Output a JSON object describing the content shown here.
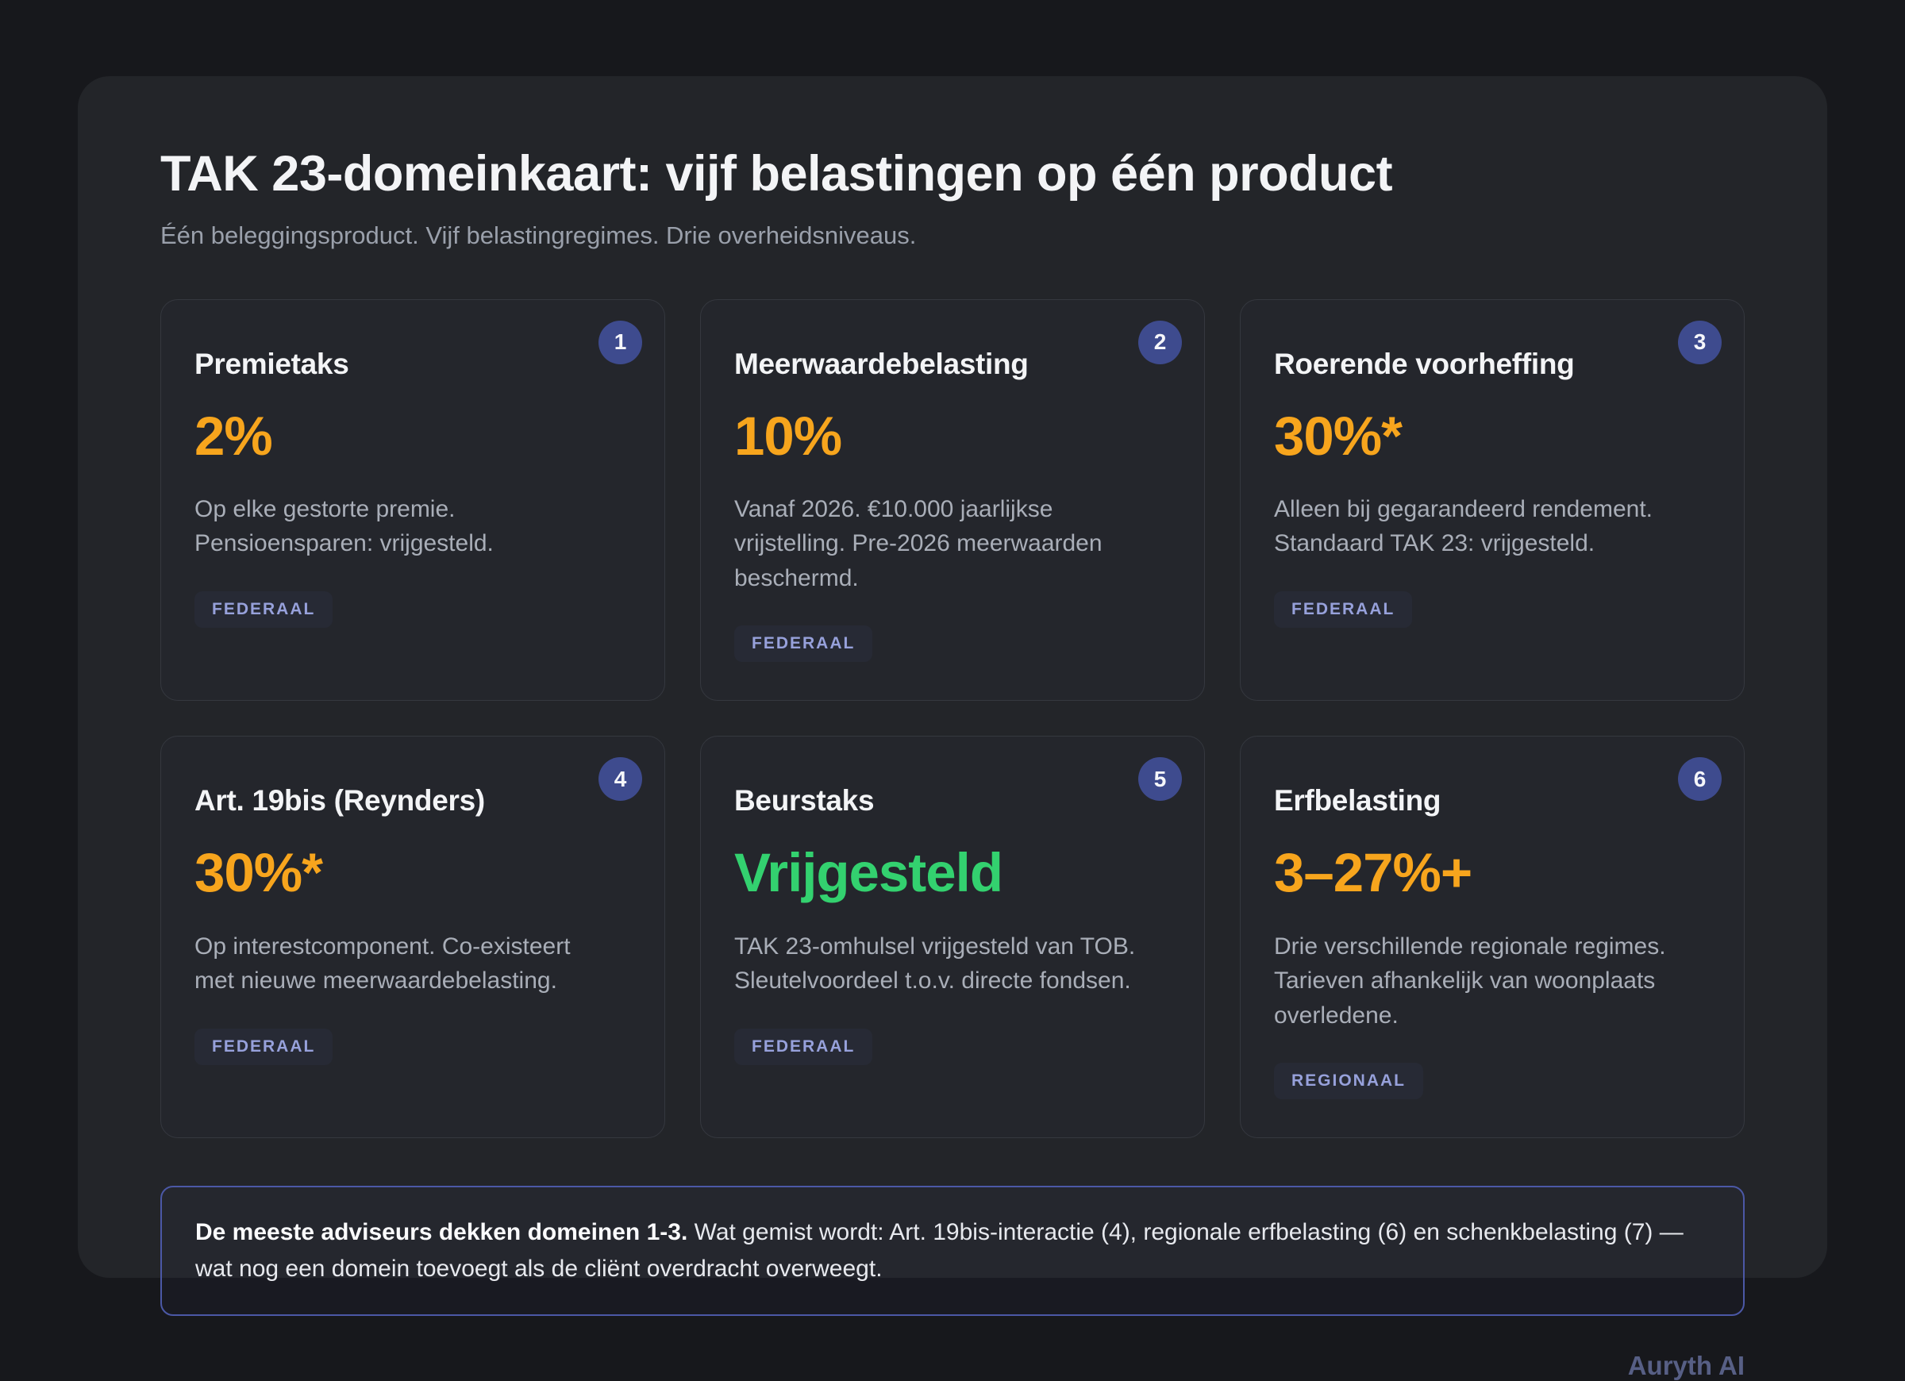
{
  "page": {
    "title": "TAK 23-domeinkaart: vijf belastingen op één product",
    "subtitle": "Één beleggingsproduct. Vijf belastingregimes. Drie overheidsniveaus.",
    "brand": "Auryth AI"
  },
  "colors": {
    "accent_orange": "#f7a51d",
    "accent_green": "#33d16f",
    "number_circle": "#3e4b8e",
    "note_border": "#4b58a6"
  },
  "cards": [
    {
      "number": "1",
      "title": "Premietaks",
      "value": "2%",
      "value_color": "accent_orange",
      "description": "Op elke gestorte premie. Pensioensparen: vrijgesteld.",
      "level": "FEDERAAL"
    },
    {
      "number": "2",
      "title": "Meerwaardebelasting",
      "value": "10%",
      "value_color": "accent_orange",
      "description": "Vanaf 2026. €10.000 jaarlijkse vrijstelling. Pre-2026 meerwaarden beschermd.",
      "level": "FEDERAAL"
    },
    {
      "number": "3",
      "title": "Roerende voorheffing",
      "value": "30%*",
      "value_color": "accent_orange",
      "description": "Alleen bij gegarandeerd rendement. Standaard TAK 23: vrijgesteld.",
      "level": "FEDERAAL"
    },
    {
      "number": "4",
      "title": "Art. 19bis (Reynders)",
      "value": "30%*",
      "value_color": "accent_orange",
      "description": "Op interestcomponent. Co-existeert met nieuwe meerwaardebelasting.",
      "level": "FEDERAAL"
    },
    {
      "number": "5",
      "title": "Beurstaks",
      "value": "Vrijgesteld",
      "value_color": "accent_green",
      "description": "TAK 23-omhulsel vrijgesteld van TOB. Sleutelvoordeel t.o.v. directe fondsen.",
      "level": "FEDERAAL"
    },
    {
      "number": "6",
      "title": "Erfbelasting",
      "value": "3–27%+",
      "value_color": "accent_orange",
      "description": "Drie verschillende regionale regimes. Tarieven afhankelijk van woonplaats overledene.",
      "level": "REGIONAAL"
    }
  ],
  "note": {
    "bold": "De meeste adviseurs dekken domeinen 1-3.",
    "text": " Wat gemist wordt: Art. 19bis-interactie (4), regionale erfbelasting (6) en schenkbelasting (7) — wat nog een domein toevoegt als de cliënt overdracht overweegt."
  }
}
